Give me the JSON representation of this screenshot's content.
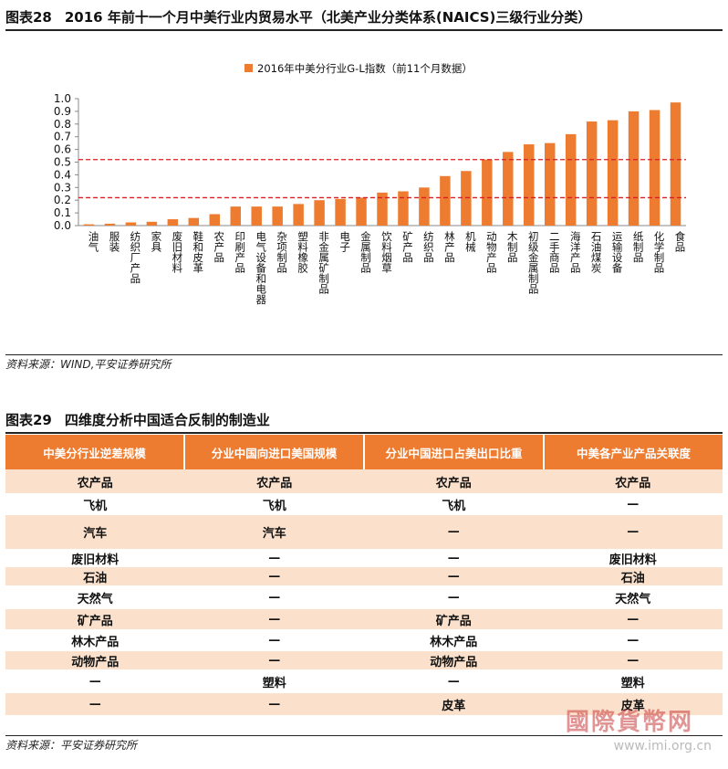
{
  "figure28": {
    "number": "图表28",
    "title": "2016 年前十一个月中美行业内贸易水平（北美产业分类体系(NAICS)三级行业分类）",
    "source": "资料来源：WIND,平安证券研究所"
  },
  "chart_data": {
    "type": "bar",
    "legend": "2016年中美分行业G-L指数（前11个月数据）",
    "legend_position": "top",
    "color": "#ee7c30",
    "reference_line_color": "#d42020",
    "reference_lines": [
      0.52,
      0.22
    ],
    "ylim": [
      0,
      1.0
    ],
    "yticks": [
      "0.0",
      "0.1",
      "0.2",
      "0.3",
      "0.4",
      "0.5",
      "0.6",
      "0.7",
      "0.8",
      "0.9",
      "1.0"
    ],
    "categories": [
      "油气",
      "服装",
      "纺织厂产品",
      "家具",
      "废旧材料",
      "鞋和皮革",
      "农产品",
      "印刷产品",
      "电气设备和电器",
      "杂项制品",
      "塑料橡胶",
      "非金属矿制品",
      "电子",
      "金属制品",
      "饮料烟草",
      "矿产品",
      "纺织品",
      "林产品",
      "机械",
      "动物产品",
      "木制品",
      "初级金属制品",
      "二手商品",
      "海洋产品",
      "石油煤炭",
      "运输设备",
      "纸制品",
      "化学制品",
      "食品"
    ],
    "values": [
      0.01,
      0.015,
      0.025,
      0.03,
      0.05,
      0.06,
      0.09,
      0.15,
      0.15,
      0.15,
      0.17,
      0.2,
      0.21,
      0.22,
      0.26,
      0.27,
      0.3,
      0.39,
      0.43,
      0.52,
      0.58,
      0.64,
      0.65,
      0.72,
      0.82,
      0.83,
      0.9,
      0.91,
      0.97
    ]
  },
  "figure29": {
    "number": "图表29",
    "title": "四维度分析中国适合反制的制造业",
    "source": "资料来源：平安证券研究所",
    "headers": [
      "中美分行业逆差规模",
      "分业中国向进口美国规模",
      "分业中国进口占美出口比重",
      "中美各产业产品关联度"
    ],
    "rows": [
      [
        "农产品",
        "农产品",
        "农产品",
        "农产品"
      ],
      [
        "飞机",
        "飞机",
        "飞机",
        "—"
      ],
      [
        "汽车",
        "汽车",
        "—",
        "—"
      ],
      [
        "废旧材料",
        "—",
        "—",
        "废旧材料"
      ],
      [
        "石油",
        "—",
        "—",
        "石油"
      ],
      [
        "天然气",
        "—",
        "—",
        "天然气"
      ],
      [
        "矿产品",
        "—",
        "矿产品",
        "—"
      ],
      [
        "林木产品",
        "—",
        "林木产品",
        "—"
      ],
      [
        "动物产品",
        "—",
        "动物产品",
        "—"
      ],
      [
        "—",
        "塑料",
        "—",
        "塑料"
      ],
      [
        "—",
        "—",
        "皮革",
        "皮革"
      ]
    ],
    "row_heights": [
      26,
      24,
      37,
      20,
      20,
      26,
      22,
      24,
      20,
      26,
      24
    ]
  },
  "watermark": {
    "text": "國際貨幣网",
    "url": "www.imi.org.cn"
  }
}
